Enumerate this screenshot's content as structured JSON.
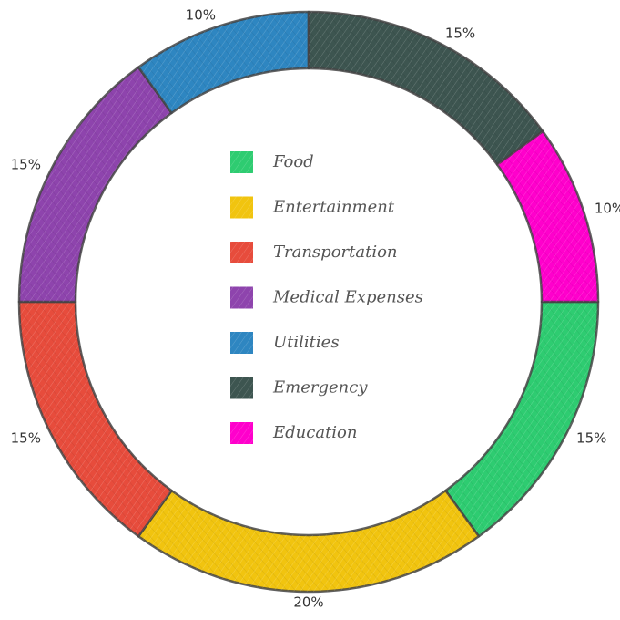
{
  "chart_data": {
    "type": "pie",
    "variant": "donut",
    "title": "",
    "legend_placement": "center",
    "series": [
      {
        "name": "Food",
        "value": 15,
        "label": "15%",
        "color": "#2ecc71"
      },
      {
        "name": "Entertainment",
        "value": 20,
        "label": "20%",
        "color": "#f1c40f"
      },
      {
        "name": "Transportation",
        "value": 15,
        "label": "15%",
        "color": "#e74c3c"
      },
      {
        "name": "Medical Expenses",
        "value": 15,
        "label": "15%",
        "color": "#8e44ad"
      },
      {
        "name": "Utilities",
        "value": 10,
        "label": "10%",
        "color": "#2e86c1"
      },
      {
        "name": "Emergency",
        "value": 15,
        "label": "15%",
        "color": "#3d5550"
      },
      {
        "name": "Education",
        "value": 10,
        "label": "10%",
        "color": "#ff00cc"
      }
    ]
  }
}
